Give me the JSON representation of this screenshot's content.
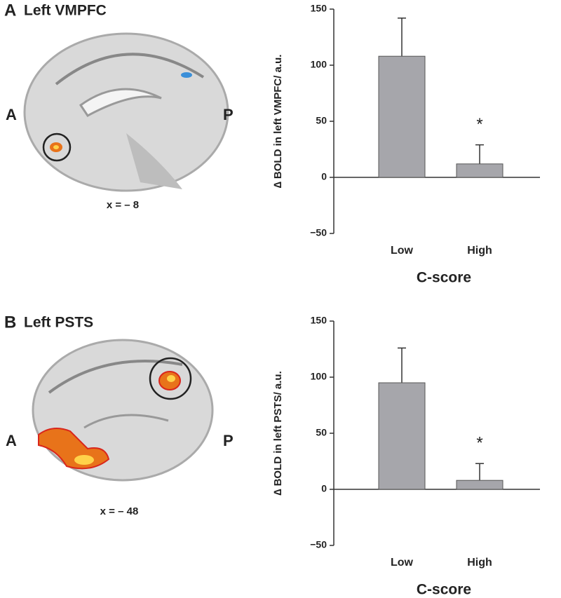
{
  "panels": [
    {
      "letter": "A",
      "title": "Left VMPFC",
      "anterior": "A",
      "posterior": "P",
      "coordinate": "x = – 8"
    },
    {
      "letter": "B",
      "title": "Left PSTS",
      "anterior": "A",
      "posterior": "P",
      "coordinate": "x = – 48"
    }
  ],
  "chart_data": [
    {
      "type": "bar",
      "categories": [
        "Low",
        "High"
      ],
      "values": [
        108,
        12
      ],
      "errors": [
        34,
        17
      ],
      "color": "#a6a6ab",
      "ylabel": "∆ BOLD in left VMPFC/ a.u.",
      "xlabel": "C-score",
      "ylim": [
        -50,
        150
      ],
      "yticks": [
        {
          "value": -50,
          "label": "−50"
        },
        0,
        50,
        100,
        150
      ],
      "annotations": [
        {
          "text": "*",
          "category": "High"
        }
      ]
    },
    {
      "type": "bar",
      "categories": [
        "Low",
        "High"
      ],
      "values": [
        95,
        8
      ],
      "errors": [
        31,
        15
      ],
      "color": "#a6a6ab",
      "ylabel": "∆ BOLD in left PSTS/ a.u.",
      "xlabel": "C-score",
      "ylim": [
        -50,
        150
      ],
      "yticks": [
        {
          "value": -50,
          "label": "−50"
        },
        0,
        50,
        100,
        150
      ],
      "annotations": [
        {
          "text": "*",
          "category": "High"
        }
      ]
    }
  ]
}
